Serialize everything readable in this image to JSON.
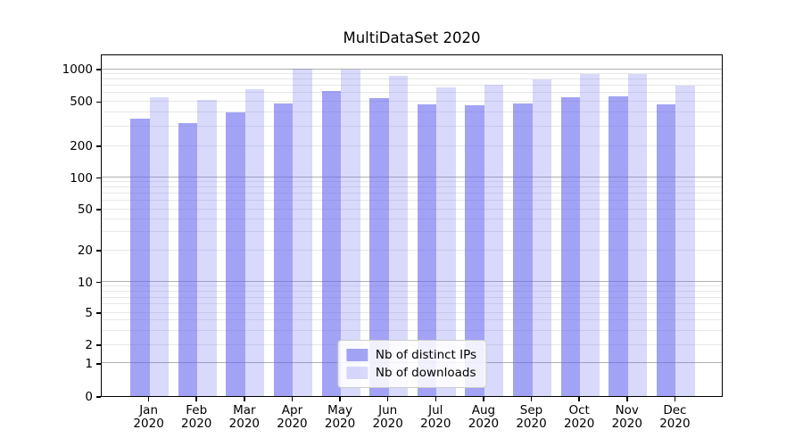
{
  "chart_data": {
    "type": "bar",
    "title": "MultiDataSet 2020",
    "x_axis": {
      "categories": [
        {
          "month": "Jan",
          "year": "2020"
        },
        {
          "month": "Feb",
          "year": "2020"
        },
        {
          "month": "Mar",
          "year": "2020"
        },
        {
          "month": "Apr",
          "year": "2020"
        },
        {
          "month": "May",
          "year": "2020"
        },
        {
          "month": "Jun",
          "year": "2020"
        },
        {
          "month": "Jul",
          "year": "2020"
        },
        {
          "month": "Aug",
          "year": "2020"
        },
        {
          "month": "Sep",
          "year": "2020"
        },
        {
          "month": "Oct",
          "year": "2020"
        },
        {
          "month": "Nov",
          "year": "2020"
        },
        {
          "month": "Dec",
          "year": "2020"
        }
      ]
    },
    "y_axis": {
      "scale": "symlog",
      "range": [
        0,
        1070
      ],
      "ticks": [
        {
          "value": 0,
          "label": "0"
        },
        {
          "value": 1,
          "label": "1"
        },
        {
          "value": 2,
          "label": "2"
        },
        {
          "value": 5,
          "label": "5"
        },
        {
          "value": 10,
          "label": "10"
        },
        {
          "value": 20,
          "label": "20"
        },
        {
          "value": 50,
          "label": "50"
        },
        {
          "value": 100,
          "label": "100"
        },
        {
          "value": 200,
          "label": "200"
        },
        {
          "value": 500,
          "label": "500"
        },
        {
          "value": 1000,
          "label": "1000"
        }
      ],
      "major_tick_values": [
        1,
        10,
        100,
        1000
      ]
    },
    "series": [
      {
        "name": "Nb of distinct IPs",
        "color": "rgba(102,102,238,0.6)",
        "values": [
          350,
          320,
          395,
          480,
          620,
          535,
          465,
          460,
          480,
          540,
          555,
          465
        ]
      },
      {
        "name": "Nb of downloads",
        "color": "rgba(102,102,238,0.25)",
        "values": [
          540,
          510,
          640,
          1000,
          975,
          860,
          670,
          710,
          790,
          885,
          885,
          700
        ]
      }
    ],
    "legend": {
      "position": "lower center",
      "entries": [
        "Nb of distinct IPs",
        "Nb of downloads"
      ]
    },
    "grid": {
      "shown": true,
      "major_color": "#b0b0b0",
      "minor_color": "#e7e7e7"
    },
    "colors": {
      "background": "#ffffff",
      "spine": "#000000",
      "bar_base": "#6666ee"
    }
  }
}
